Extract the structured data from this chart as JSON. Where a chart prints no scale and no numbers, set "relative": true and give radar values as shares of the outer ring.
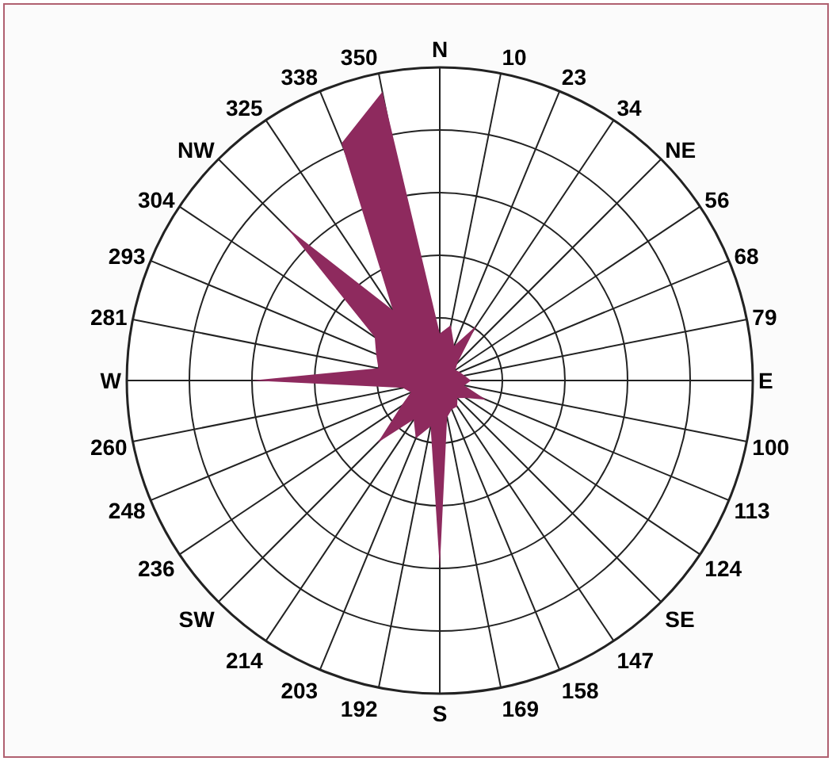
{
  "chart_data": {
    "type": "radar",
    "relative": true,
    "grid": true,
    "categories": [
      "N",
      "10",
      "23",
      "34",
      "NE",
      "56",
      "68",
      "79",
      "E",
      "100",
      "113",
      "124",
      "SE",
      "147",
      "158",
      "169",
      "S",
      "192",
      "203",
      "214",
      "SW",
      "236",
      "248",
      "260",
      "W",
      "281",
      "293",
      "304",
      "NW",
      "325",
      "338",
      "350"
    ],
    "series": [
      {
        "color": "#8e2a5e",
        "values": [
          0.15,
          0.18,
          0.12,
          0.21,
          0.08,
          0.06,
          0.07,
          0.08,
          0.1,
          0.08,
          0.16,
          0.1,
          0.08,
          0.1,
          0.1,
          0.12,
          0.6,
          0.15,
          0.2,
          0.15,
          0.28,
          0.15,
          0.1,
          0.12,
          0.6,
          0.2,
          0.22,
          0.25,
          0.69,
          0.27,
          0.82,
          0.94
        ]
      }
    ]
  }
}
